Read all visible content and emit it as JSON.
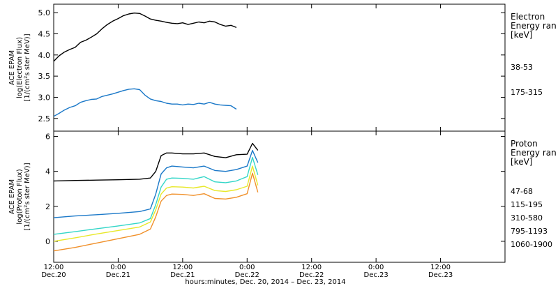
{
  "chart_data": [
    {
      "type": "line",
      "ylabel_lines": [
        "ACE EPAM",
        "log(Electron Flux)",
        "[1/(cm²s ster MeV)]"
      ],
      "ylim": [
        2.2,
        5.2
      ],
      "yticks": [
        2.5,
        3.0,
        3.5,
        4.0,
        4.5,
        5.0
      ],
      "ytick_labels": [
        "2.5",
        "3.0",
        "3.5",
        "4.0",
        "4.5",
        "5.0"
      ],
      "legend_title_lines": [
        "Electron",
        "Energy ran",
        "[keV]"
      ],
      "series": [
        {
          "name": "38-53",
          "color": "#000000",
          "points": [
            [
              0,
              3.85
            ],
            [
              1,
              3.98
            ],
            [
              2,
              4.07
            ],
            [
              3,
              4.13
            ],
            [
              4,
              4.18
            ],
            [
              5,
              4.3
            ],
            [
              6,
              4.35
            ],
            [
              7,
              4.42
            ],
            [
              8,
              4.5
            ],
            [
              9,
              4.62
            ],
            [
              10,
              4.72
            ],
            [
              11,
              4.8
            ],
            [
              12,
              4.86
            ],
            [
              13,
              4.93
            ],
            [
              14,
              4.97
            ],
            [
              15,
              4.99
            ],
            [
              16,
              4.98
            ],
            [
              17,
              4.92
            ],
            [
              18,
              4.85
            ],
            [
              19,
              4.82
            ],
            [
              20,
              4.8
            ],
            [
              21,
              4.77
            ],
            [
              22,
              4.75
            ],
            [
              23,
              4.74
            ],
            [
              24,
              4.76
            ],
            [
              25,
              4.72
            ],
            [
              26,
              4.75
            ],
            [
              27,
              4.78
            ],
            [
              28,
              4.76
            ],
            [
              29,
              4.8
            ],
            [
              30,
              4.78
            ],
            [
              31,
              4.72
            ],
            [
              32,
              4.68
            ],
            [
              33,
              4.7
            ],
            [
              34,
              4.65
            ]
          ]
        },
        {
          "name": "175-315",
          "color": "#1a78c8",
          "points": [
            [
              0,
              2.55
            ],
            [
              1,
              2.62
            ],
            [
              2,
              2.7
            ],
            [
              3,
              2.76
            ],
            [
              4,
              2.8
            ],
            [
              5,
              2.88
            ],
            [
              6,
              2.92
            ],
            [
              7,
              2.95
            ],
            [
              8,
              2.96
            ],
            [
              9,
              3.02
            ],
            [
              10,
              3.05
            ],
            [
              11,
              3.08
            ],
            [
              12,
              3.12
            ],
            [
              13,
              3.16
            ],
            [
              14,
              3.19
            ],
            [
              15,
              3.2
            ],
            [
              16,
              3.18
            ],
            [
              17,
              3.05
            ],
            [
              18,
              2.96
            ],
            [
              19,
              2.92
            ],
            [
              20,
              2.9
            ],
            [
              21,
              2.86
            ],
            [
              22,
              2.84
            ],
            [
              23,
              2.84
            ],
            [
              24,
              2.82
            ],
            [
              25,
              2.84
            ],
            [
              26,
              2.83
            ],
            [
              27,
              2.86
            ],
            [
              28,
              2.84
            ],
            [
              29,
              2.88
            ],
            [
              30,
              2.84
            ],
            [
              31,
              2.82
            ],
            [
              32,
              2.81
            ],
            [
              33,
              2.8
            ],
            [
              34,
              2.72
            ]
          ]
        }
      ]
    },
    {
      "type": "line",
      "ylabel_lines": [
        "ACE EPAM",
        "log(Proton Flux)",
        "[1/(cm²s ster MeV)]"
      ],
      "ylim": [
        -1.2,
        6.3
      ],
      "yticks": [
        0,
        2,
        4,
        6
      ],
      "ytick_labels": [
        "0",
        "2",
        "4",
        "6"
      ],
      "legend_title_lines": [
        "Proton",
        "Energy ran",
        "[keV]"
      ],
      "series": [
        {
          "name": "47-68",
          "color": "#000000",
          "points": [
            [
              0,
              3.45
            ],
            [
              4,
              3.48
            ],
            [
              8,
              3.5
            ],
            [
              12,
              3.52
            ],
            [
              16,
              3.55
            ],
            [
              18,
              3.62
            ],
            [
              19,
              4.0
            ],
            [
              20,
              4.9
            ],
            [
              21,
              5.05
            ],
            [
              22,
              5.05
            ],
            [
              24,
              5.0
            ],
            [
              26,
              5.0
            ],
            [
              28,
              5.05
            ],
            [
              30,
              4.85
            ],
            [
              32,
              4.78
            ],
            [
              34,
              4.95
            ],
            [
              36,
              4.98
            ],
            [
              37,
              5.6
            ],
            [
              38,
              5.2
            ]
          ]
        },
        {
          "name": "115-195",
          "color": "#1a78c8",
          "points": [
            [
              0,
              1.35
            ],
            [
              4,
              1.45
            ],
            [
              8,
              1.52
            ],
            [
              12,
              1.6
            ],
            [
              16,
              1.7
            ],
            [
              18,
              1.85
            ],
            [
              19,
              2.7
            ],
            [
              20,
              3.85
            ],
            [
              21,
              4.2
            ],
            [
              22,
              4.3
            ],
            [
              24,
              4.25
            ],
            [
              26,
              4.2
            ],
            [
              28,
              4.3
            ],
            [
              30,
              4.05
            ],
            [
              32,
              4.0
            ],
            [
              34,
              4.1
            ],
            [
              36,
              4.3
            ],
            [
              37,
              5.2
            ],
            [
              38,
              4.5
            ]
          ]
        },
        {
          "name": "310-580",
          "color": "#33d6c8",
          "points": [
            [
              0,
              0.4
            ],
            [
              4,
              0.55
            ],
            [
              8,
              0.72
            ],
            [
              12,
              0.88
            ],
            [
              16,
              1.05
            ],
            [
              18,
              1.3
            ],
            [
              19,
              2.1
            ],
            [
              20,
              3.1
            ],
            [
              21,
              3.55
            ],
            [
              22,
              3.62
            ],
            [
              24,
              3.6
            ],
            [
              26,
              3.55
            ],
            [
              28,
              3.7
            ],
            [
              30,
              3.4
            ],
            [
              32,
              3.35
            ],
            [
              34,
              3.45
            ],
            [
              36,
              3.7
            ],
            [
              37,
              4.8
            ],
            [
              38,
              3.8
            ]
          ]
        },
        {
          "name": "795-1193",
          "color": "#e8e82a",
          "points": [
            [
              0,
              0.0
            ],
            [
              4,
              0.2
            ],
            [
              8,
              0.42
            ],
            [
              12,
              0.62
            ],
            [
              16,
              0.82
            ],
            [
              18,
              1.1
            ],
            [
              19,
              1.8
            ],
            [
              20,
              2.7
            ],
            [
              21,
              3.05
            ],
            [
              22,
              3.12
            ],
            [
              24,
              3.1
            ],
            [
              26,
              3.05
            ],
            [
              28,
              3.15
            ],
            [
              30,
              2.9
            ],
            [
              32,
              2.85
            ],
            [
              34,
              2.95
            ],
            [
              36,
              3.15
            ],
            [
              37,
              4.3
            ],
            [
              38,
              3.2
            ]
          ]
        },
        {
          "name": "1060-1900",
          "color": "#f0902a",
          "points": [
            [
              0,
              -0.55
            ],
            [
              4,
              -0.35
            ],
            [
              8,
              -0.1
            ],
            [
              12,
              0.15
            ],
            [
              16,
              0.4
            ],
            [
              18,
              0.7
            ],
            [
              19,
              1.4
            ],
            [
              20,
              2.3
            ],
            [
              21,
              2.62
            ],
            [
              22,
              2.7
            ],
            [
              24,
              2.68
            ],
            [
              26,
              2.62
            ],
            [
              28,
              2.72
            ],
            [
              30,
              2.45
            ],
            [
              32,
              2.42
            ],
            [
              34,
              2.52
            ],
            [
              36,
              2.72
            ],
            [
              37,
              3.9
            ],
            [
              38,
              2.8
            ]
          ]
        }
      ]
    }
  ],
  "x_axis": {
    "range_hours": [
      0,
      84
    ],
    "ticks": [
      {
        "hour": 0,
        "lines": [
          "12:00",
          "Dec.20"
        ]
      },
      {
        "hour": 12,
        "lines": [
          "0:00",
          "Dec.21"
        ]
      },
      {
        "hour": 24,
        "lines": [
          "12:00",
          "Dec.21"
        ]
      },
      {
        "hour": 36,
        "lines": [
          "0:00",
          "Dec.22"
        ]
      },
      {
        "hour": 48,
        "lines": [
          "12:00",
          "Dec.22"
        ]
      },
      {
        "hour": 60,
        "lines": [
          "0:00",
          "Dec.23"
        ]
      },
      {
        "hour": 72,
        "lines": [
          "12:00",
          "Dec.23"
        ]
      }
    ],
    "label": "hours:minutes, Dec. 20, 2014 – Dec. 23, 2014"
  }
}
